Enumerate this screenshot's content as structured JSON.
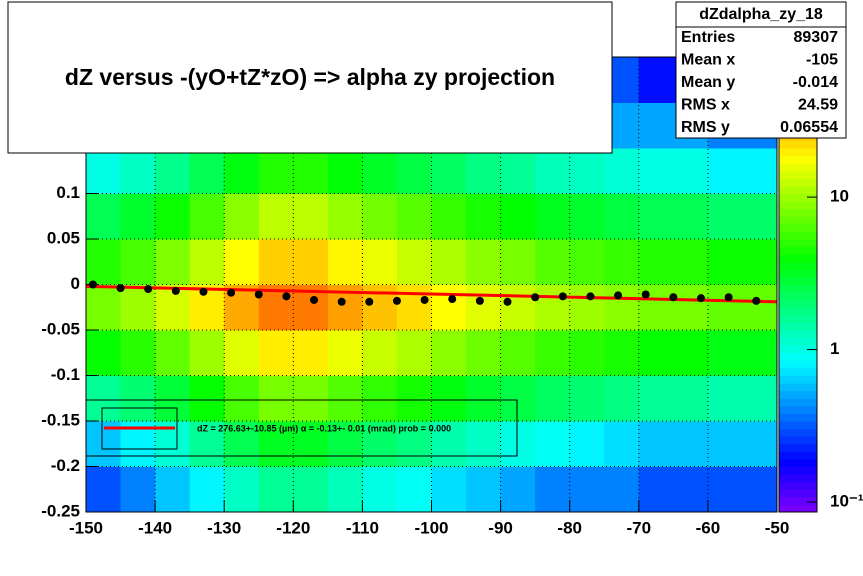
{
  "chart_data": {
    "type": "heatmap",
    "title": "dZ  versus -(yO+tZ*zO) =>  alpha zy projection",
    "xlim": [
      -150,
      -50
    ],
    "xticks": [
      -150,
      -140,
      -130,
      -120,
      -110,
      -100,
      -90,
      -80,
      -70,
      -60,
      -50
    ],
    "ylim": [
      -0.25,
      0.25
    ],
    "yticks": [
      -0.25,
      -0.2,
      -0.15,
      -0.1,
      -0.05,
      0,
      0.05,
      0.1
    ],
    "grid": true,
    "x_bins": [
      -150,
      -145,
      -140,
      -135,
      -130,
      -125,
      -120,
      -115,
      -110,
      -105,
      -100,
      -95,
      -90,
      -85,
      -80,
      -75,
      -70,
      -65,
      -60,
      -55,
      -50
    ],
    "y_bins": [
      -0.25,
      -0.2,
      -0.15,
      -0.1,
      -0.05,
      0,
      0.05,
      0.1,
      0.15,
      0.2,
      0.25
    ],
    "z": [
      [
        0.3,
        0.4,
        0.6,
        0.8,
        1.2,
        1.6,
        1.6,
        1.3,
        1,
        0.9,
        0.7,
        0.6,
        0.5,
        0.4,
        0.4,
        0.4,
        0.3,
        0.3,
        0.3,
        0.3
      ],
      [
        0.6,
        0.8,
        1.1,
        1.6,
        2.4,
        3.2,
        3.2,
        2.6,
        2.1,
        1.8,
        1.4,
        1.2,
        1,
        0.9,
        0.8,
        0.7,
        0.6,
        0.6,
        0.6,
        0.6
      ],
      [
        1.6,
        2,
        2.8,
        4,
        6,
        8,
        8,
        6.4,
        5.2,
        4.4,
        3.6,
        3,
        2.6,
        2.2,
        2,
        1.8,
        1.6,
        1.6,
        1.4,
        1.4
      ],
      [
        4,
        5,
        7,
        10,
        15,
        20,
        20,
        16,
        13,
        11,
        9,
        7.5,
        6.5,
        5.5,
        5,
        4.5,
        4,
        4,
        3.5,
        3.5
      ],
      [
        8,
        10,
        14,
        20,
        30,
        40,
        40,
        32,
        26,
        22,
        18,
        15,
        13,
        11,
        10,
        9,
        8,
        8,
        7,
        7
      ],
      [
        4.8,
        6,
        8.4,
        12,
        18,
        24,
        24,
        19,
        16,
        13,
        11,
        9,
        8,
        6.6,
        6,
        5.4,
        4.8,
        4.8,
        4.2,
        4.2
      ],
      [
        2.4,
        3,
        4.2,
        6,
        9,
        12,
        12,
        9.6,
        7.8,
        6.6,
        5.4,
        4.5,
        3.9,
        3.3,
        3,
        2.7,
        2.4,
        2.4,
        2.1,
        2.1
      ],
      [
        1,
        1.2,
        1.7,
        2.4,
        3.6,
        4.8,
        4.8,
        3.8,
        3.1,
        2.6,
        2.2,
        1.8,
        1.6,
        1.3,
        1.2,
        1.1,
        1,
        1,
        0.8,
        0.8
      ],
      [
        0.5,
        0.6,
        0.8,
        1.2,
        1.8,
        2.4,
        2.4,
        1.9,
        1.6,
        1.3,
        1.1,
        0.9,
        0.8,
        0.7,
        0.6,
        0.5,
        0.5,
        0.5,
        0.4,
        0.4
      ],
      [
        0.2,
        0.3,
        0.4,
        0.6,
        0.9,
        1.2,
        1.2,
        1,
        0.8,
        0.7,
        0.5,
        0.5,
        0.4,
        0.3,
        0.3,
        0.3,
        0.2,
        0.2,
        0.2,
        0.2
      ]
    ],
    "zlim": [
      0.086,
      83
    ],
    "zlog": true,
    "zticks": [
      {
        "value": 0.1,
        "label": "10⁻¹"
      },
      1,
      10
    ],
    "profile": {
      "color": "#000000",
      "x": [
        -149,
        -145,
        -141,
        -137,
        -133,
        -129,
        -125,
        -121,
        -117,
        -113,
        -109,
        -105,
        -101,
        -97,
        -93,
        -89,
        -85,
        -81,
        -77,
        -73,
        -69,
        -65,
        -61,
        -57,
        -53
      ],
      "values": [
        0.0,
        -0.004,
        -0.005,
        -0.007,
        -0.008,
        -0.009,
        -0.011,
        -0.013,
        -0.017,
        -0.019,
        -0.019,
        -0.018,
        -0.017,
        -0.016,
        -0.018,
        -0.019,
        -0.014,
        -0.013,
        -0.013,
        -0.012,
        -0.011,
        -0.014,
        -0.015,
        -0.014,
        -0.018
      ]
    },
    "fit": {
      "color": "#ff0000",
      "x": [
        -150,
        -50
      ],
      "values": [
        -0.002,
        -0.019
      ]
    },
    "fit_label": "dZ = 276.63+-10.85 (µm) α = -0.13+- 0.01 (mrad) prob = 0.000",
    "stats": {
      "name": "dZdalpha_zy_18",
      "rows": [
        {
          "label": "Entries",
          "value": 89307
        },
        {
          "label": "Mean x",
          "value": -105
        },
        {
          "label": "Mean y",
          "value": -0.014
        },
        {
          "label": "RMS x",
          "value": 24.59
        },
        {
          "label": "RMS y",
          "value": 0.06554
        }
      ]
    }
  }
}
